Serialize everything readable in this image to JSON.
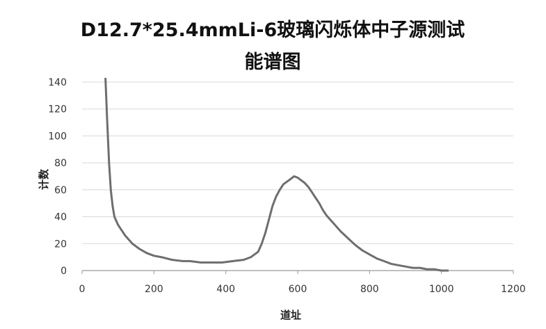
{
  "chart_data": {
    "type": "line",
    "title_lines": [
      "D12.7*25.4mmLi-6玻璃闪烁体中子源测试",
      "能谱图"
    ],
    "xlabel": "道址",
    "ylabel": "计数",
    "xlim": [
      0,
      1200
    ],
    "ylim": [
      0,
      140
    ],
    "x_ticks": [
      "0",
      "200",
      "400",
      "600",
      "800",
      "1000",
      "1200"
    ],
    "y_ticks": [
      "0",
      "20",
      "40",
      "60",
      "80",
      "100",
      "120",
      "140"
    ],
    "grid": true,
    "legend": "none",
    "line_color": "#6e6e6e",
    "series": [
      {
        "x": [
          65,
          70,
          75,
          80,
          85,
          90,
          100,
          110,
          120,
          140,
          160,
          180,
          200,
          220,
          250,
          280,
          300,
          330,
          360,
          390,
          420,
          450,
          470,
          490,
          500,
          510,
          520,
          530,
          540,
          550,
          560,
          570,
          580,
          590,
          600,
          610,
          620,
          630,
          640,
          650,
          660,
          670,
          680,
          700,
          720,
          740,
          760,
          780,
          800,
          820,
          840,
          860,
          880,
          900,
          920,
          940,
          960,
          980,
          1000,
          1020
        ],
        "y": [
          150,
          110,
          80,
          60,
          48,
          40,
          34,
          30,
          26,
          20,
          16,
          13,
          11,
          10,
          8,
          7,
          7,
          6,
          6,
          6,
          7,
          8,
          10,
          14,
          20,
          28,
          38,
          48,
          55,
          60,
          64,
          66,
          68,
          70,
          69,
          67,
          65,
          62,
          58,
          54,
          50,
          45,
          41,
          35,
          29,
          24,
          19,
          15,
          12,
          9,
          7,
          5,
          4,
          3,
          2,
          2,
          1,
          1,
          0,
          0
        ]
      }
    ]
  }
}
